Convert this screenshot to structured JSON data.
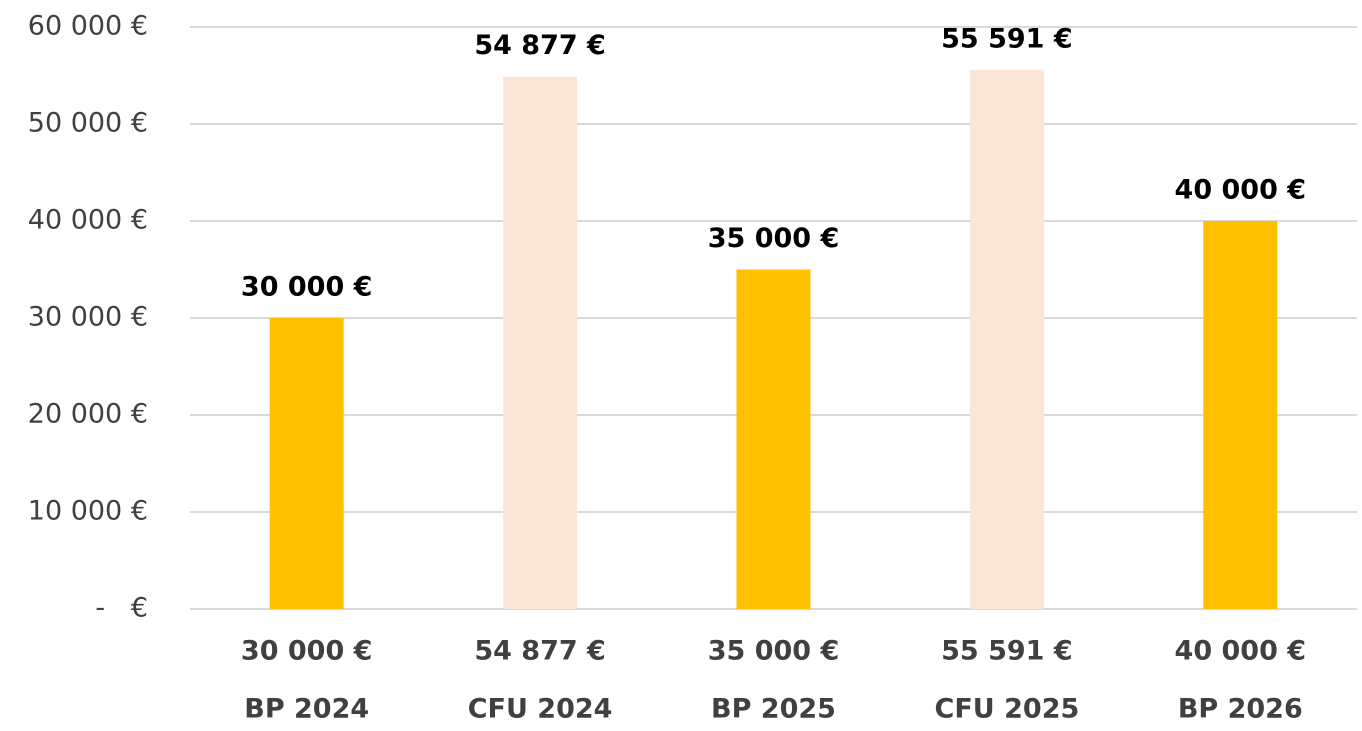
{
  "chart_data": {
    "type": "bar",
    "categories": [
      "BP 2024",
      "CFU 2024",
      "BP 2025",
      "CFU 2025",
      "BP 2026"
    ],
    "values": [
      30000,
      54877,
      35000,
      55591,
      40000
    ],
    "value_labels": [
      "30 000 €",
      "54 877 €",
      "35 000 €",
      "55 591 €",
      "40 000 €"
    ],
    "colors": [
      "#ffc000",
      "#fbe5d6",
      "#ffc000",
      "#fbe5d6",
      "#ffc000"
    ],
    "ylim": [
      0,
      60000
    ],
    "yticks": [
      {
        "value": 0,
        "label": "-   €"
      },
      {
        "value": 10000,
        "label": "10 000 €"
      },
      {
        "value": 20000,
        "label": "20 000 €"
      },
      {
        "value": 30000,
        "label": "30 000 €"
      },
      {
        "value": 40000,
        "label": "40 000 €"
      },
      {
        "value": 50000,
        "label": "50 000 €"
      },
      {
        "value": 60000,
        "label": "60 000 €"
      }
    ],
    "grid": true
  }
}
